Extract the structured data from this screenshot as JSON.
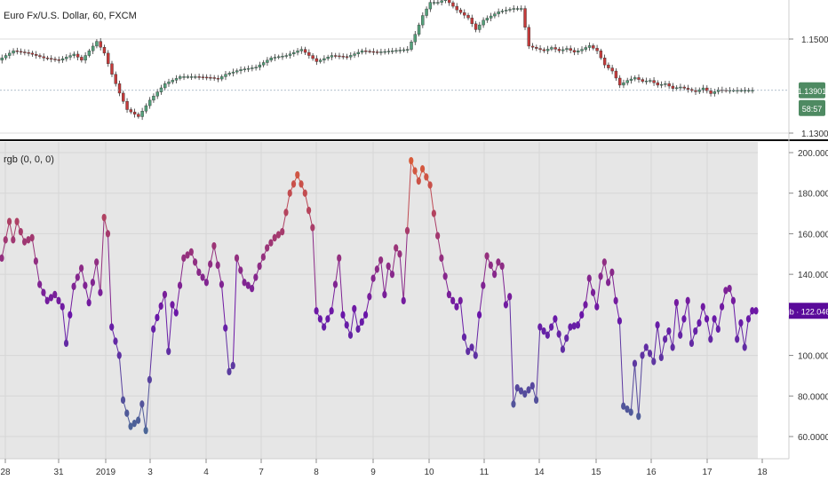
{
  "header": {
    "symbol_title": "Euro Fx/U.S. Dollar, 60, FXCM"
  },
  "indicator": {
    "title": "rgb (0, 0, 0)"
  },
  "colors": {
    "up": "#53a07a",
    "down": "#c43a3a",
    "indicator_bg": "#e6e6e6",
    "price_badge": "#4e8a62",
    "countdown_badge": "#4e8a62",
    "ind_badge": "#5a0a9a",
    "grid": "#dddddd",
    "axis_text": "#333333"
  },
  "chart_data": [
    {
      "type": "candlestick",
      "title": "Euro Fx/U.S. Dollar, 60, FXCM",
      "ylim": [
        1.13,
        1.16
      ],
      "y_ticks": [
        "1.15000",
        "1.13000"
      ],
      "last_price": "1.13901",
      "countdown": "58:57",
      "anchors": [
        [
          0,
          1.1455
        ],
        [
          4,
          1.1475
        ],
        [
          8,
          1.147
        ],
        [
          12,
          1.146
        ],
        [
          16,
          1.1455
        ],
        [
          20,
          1.1468
        ],
        [
          22,
          1.1455
        ],
        [
          24,
          1.1475
        ],
        [
          26,
          1.1495
        ],
        [
          28,
          1.147
        ],
        [
          30,
          1.1425
        ],
        [
          32,
          1.1385
        ],
        [
          34,
          1.135
        ],
        [
          37,
          1.1335
        ],
        [
          40,
          1.137
        ],
        [
          44,
          1.1405
        ],
        [
          48,
          1.142
        ],
        [
          52,
          1.142
        ],
        [
          56,
          1.1418
        ],
        [
          58,
          1.1415
        ],
        [
          60,
          1.1425
        ],
        [
          64,
          1.1435
        ],
        [
          68,
          1.144
        ],
        [
          72,
          1.146
        ],
        [
          76,
          1.1465
        ],
        [
          80,
          1.1478
        ],
        [
          84,
          1.1452
        ],
        [
          88,
          1.1465
        ],
        [
          92,
          1.1462
        ],
        [
          96,
          1.1475
        ],
        [
          100,
          1.1472
        ],
        [
          104,
          1.1475
        ],
        [
          108,
          1.1478
        ],
        [
          110,
          1.151
        ],
        [
          112,
          1.155
        ],
        [
          114,
          1.1578
        ],
        [
          116,
          1.1578
        ],
        [
          118,
          1.1585
        ],
        [
          121,
          1.1562
        ],
        [
          124,
          1.1545
        ],
        [
          126,
          1.152
        ],
        [
          128,
          1.154
        ],
        [
          132,
          1.1558
        ],
        [
          136,
          1.1565
        ],
        [
          138,
          1.1565
        ],
        [
          140,
          1.1485
        ],
        [
          142,
          1.148
        ],
        [
          144,
          1.1475
        ],
        [
          146,
          1.1482
        ],
        [
          148,
          1.1475
        ],
        [
          150,
          1.148
        ],
        [
          152,
          1.1472
        ],
        [
          154,
          1.1478
        ],
        [
          156,
          1.1486
        ],
        [
          158,
          1.1475
        ],
        [
          160,
          1.1445
        ],
        [
          162,
          1.1432
        ],
        [
          164,
          1.1402
        ],
        [
          166,
          1.1412
        ],
        [
          168,
          1.1418
        ],
        [
          170,
          1.141
        ],
        [
          172,
          1.1412
        ],
        [
          174,
          1.1402
        ],
        [
          176,
          1.1405
        ],
        [
          178,
          1.1395
        ],
        [
          180,
          1.1398
        ],
        [
          182,
          1.1393
        ],
        [
          184,
          1.1388
        ],
        [
          186,
          1.1396
        ],
        [
          188,
          1.1384
        ],
        [
          190,
          1.1392
        ],
        [
          192,
          1.1391
        ]
      ]
    },
    {
      "type": "scatter-line",
      "title": "rgb (0, 0, 0)",
      "ylim": [
        55,
        203
      ],
      "y_ticks": [
        "200.0000",
        "180.0000",
        "160.0000",
        "140.0000",
        "100.0000",
        "80.0000",
        "60.0000"
      ],
      "last_value": "122.0464",
      "x_ticks": [
        "28",
        "31",
        "2019",
        "3",
        "4",
        "7",
        "8",
        "9",
        "10",
        "11",
        "14",
        "15",
        "16",
        "17",
        "18"
      ],
      "color_scale": {
        "low": "#4a6a96",
        "mid": "#6a16a8",
        "high": "#d85a3a"
      },
      "anchors": [
        [
          0,
          148
        ],
        [
          2,
          166
        ],
        [
          3,
          157
        ],
        [
          4,
          166
        ],
        [
          6,
          156
        ],
        [
          8,
          158
        ],
        [
          10,
          135
        ],
        [
          12,
          127
        ],
        [
          14,
          130
        ],
        [
          16,
          124
        ],
        [
          17,
          106
        ],
        [
          19,
          134
        ],
        [
          21,
          143
        ],
        [
          23,
          126
        ],
        [
          25,
          146
        ],
        [
          26,
          131
        ],
        [
          27,
          168
        ],
        [
          28,
          160
        ],
        [
          29,
          114
        ],
        [
          31,
          100
        ],
        [
          32,
          78
        ],
        [
          34,
          65
        ],
        [
          36,
          68
        ],
        [
          37,
          76
        ],
        [
          38,
          63
        ],
        [
          40,
          113
        ],
        [
          43,
          130
        ],
        [
          44,
          102
        ],
        [
          45,
          125
        ],
        [
          46,
          121
        ],
        [
          48,
          148
        ],
        [
          50,
          151
        ],
        [
          52,
          141
        ],
        [
          54,
          136
        ],
        [
          56,
          154
        ],
        [
          58,
          135
        ],
        [
          60,
          92
        ],
        [
          61,
          95
        ],
        [
          62,
          148
        ],
        [
          64,
          136
        ],
        [
          66,
          133
        ],
        [
          68,
          144
        ],
        [
          70,
          153
        ],
        [
          72,
          158
        ],
        [
          74,
          161
        ],
        [
          76,
          180
        ],
        [
          78,
          189
        ],
        [
          80,
          180
        ],
        [
          82,
          163
        ],
        [
          83,
          122
        ],
        [
          85,
          114
        ],
        [
          87,
          122
        ],
        [
          89,
          148
        ],
        [
          90,
          120
        ],
        [
          92,
          110
        ],
        [
          93,
          123
        ],
        [
          94,
          113
        ],
        [
          96,
          120
        ],
        [
          98,
          138
        ],
        [
          100,
          147
        ],
        [
          101,
          130
        ],
        [
          102,
          144
        ],
        [
          103,
          140
        ],
        [
          104,
          153
        ],
        [
          105,
          150
        ],
        [
          106,
          127
        ],
        [
          108,
          196
        ],
        [
          110,
          186
        ],
        [
          111,
          192
        ],
        [
          113,
          184
        ],
        [
          114,
          170
        ],
        [
          116,
          148
        ],
        [
          118,
          130
        ],
        [
          120,
          124
        ],
        [
          121,
          127
        ],
        [
          122,
          109
        ],
        [
          123,
          102
        ],
        [
          124,
          104
        ],
        [
          125,
          100
        ],
        [
          126,
          120
        ],
        [
          128,
          149
        ],
        [
          130,
          140
        ],
        [
          131,
          146
        ],
        [
          132,
          144
        ],
        [
          133,
          125
        ],
        [
          134,
          129
        ],
        [
          135,
          76
        ],
        [
          136,
          84
        ],
        [
          138,
          81
        ],
        [
          140,
          85
        ],
        [
          141,
          78
        ],
        [
          142,
          114
        ],
        [
          144,
          110
        ],
        [
          146,
          118
        ],
        [
          148,
          103
        ],
        [
          150,
          114
        ],
        [
          152,
          115
        ],
        [
          154,
          125
        ],
        [
          155,
          138
        ],
        [
          157,
          124
        ],
        [
          158,
          139
        ],
        [
          159,
          146
        ],
        [
          160,
          136
        ],
        [
          161,
          141
        ],
        [
          162,
          127
        ],
        [
          163,
          117
        ],
        [
          164,
          75
        ],
        [
          166,
          72
        ],
        [
          167,
          96
        ],
        [
          168,
          70
        ],
        [
          169,
          100
        ],
        [
          170,
          104
        ],
        [
          171,
          101
        ],
        [
          172,
          97
        ],
        [
          173,
          115
        ],
        [
          174,
          99
        ],
        [
          175,
          108
        ],
        [
          176,
          112
        ],
        [
          177,
          104
        ],
        [
          178,
          126
        ],
        [
          179,
          110
        ],
        [
          180,
          118
        ],
        [
          181,
          127
        ],
        [
          182,
          106
        ],
        [
          183,
          112
        ],
        [
          184,
          116
        ],
        [
          185,
          124
        ],
        [
          186,
          118
        ],
        [
          187,
          108
        ],
        [
          188,
          118
        ],
        [
          189,
          113
        ],
        [
          190,
          124
        ],
        [
          191,
          132
        ],
        [
          192,
          133
        ],
        [
          193,
          127
        ],
        [
          194,
          108
        ],
        [
          195,
          116
        ],
        [
          196,
          104
        ],
        [
          197,
          118
        ],
        [
          198,
          122
        ],
        [
          199,
          122
        ]
      ]
    }
  ]
}
